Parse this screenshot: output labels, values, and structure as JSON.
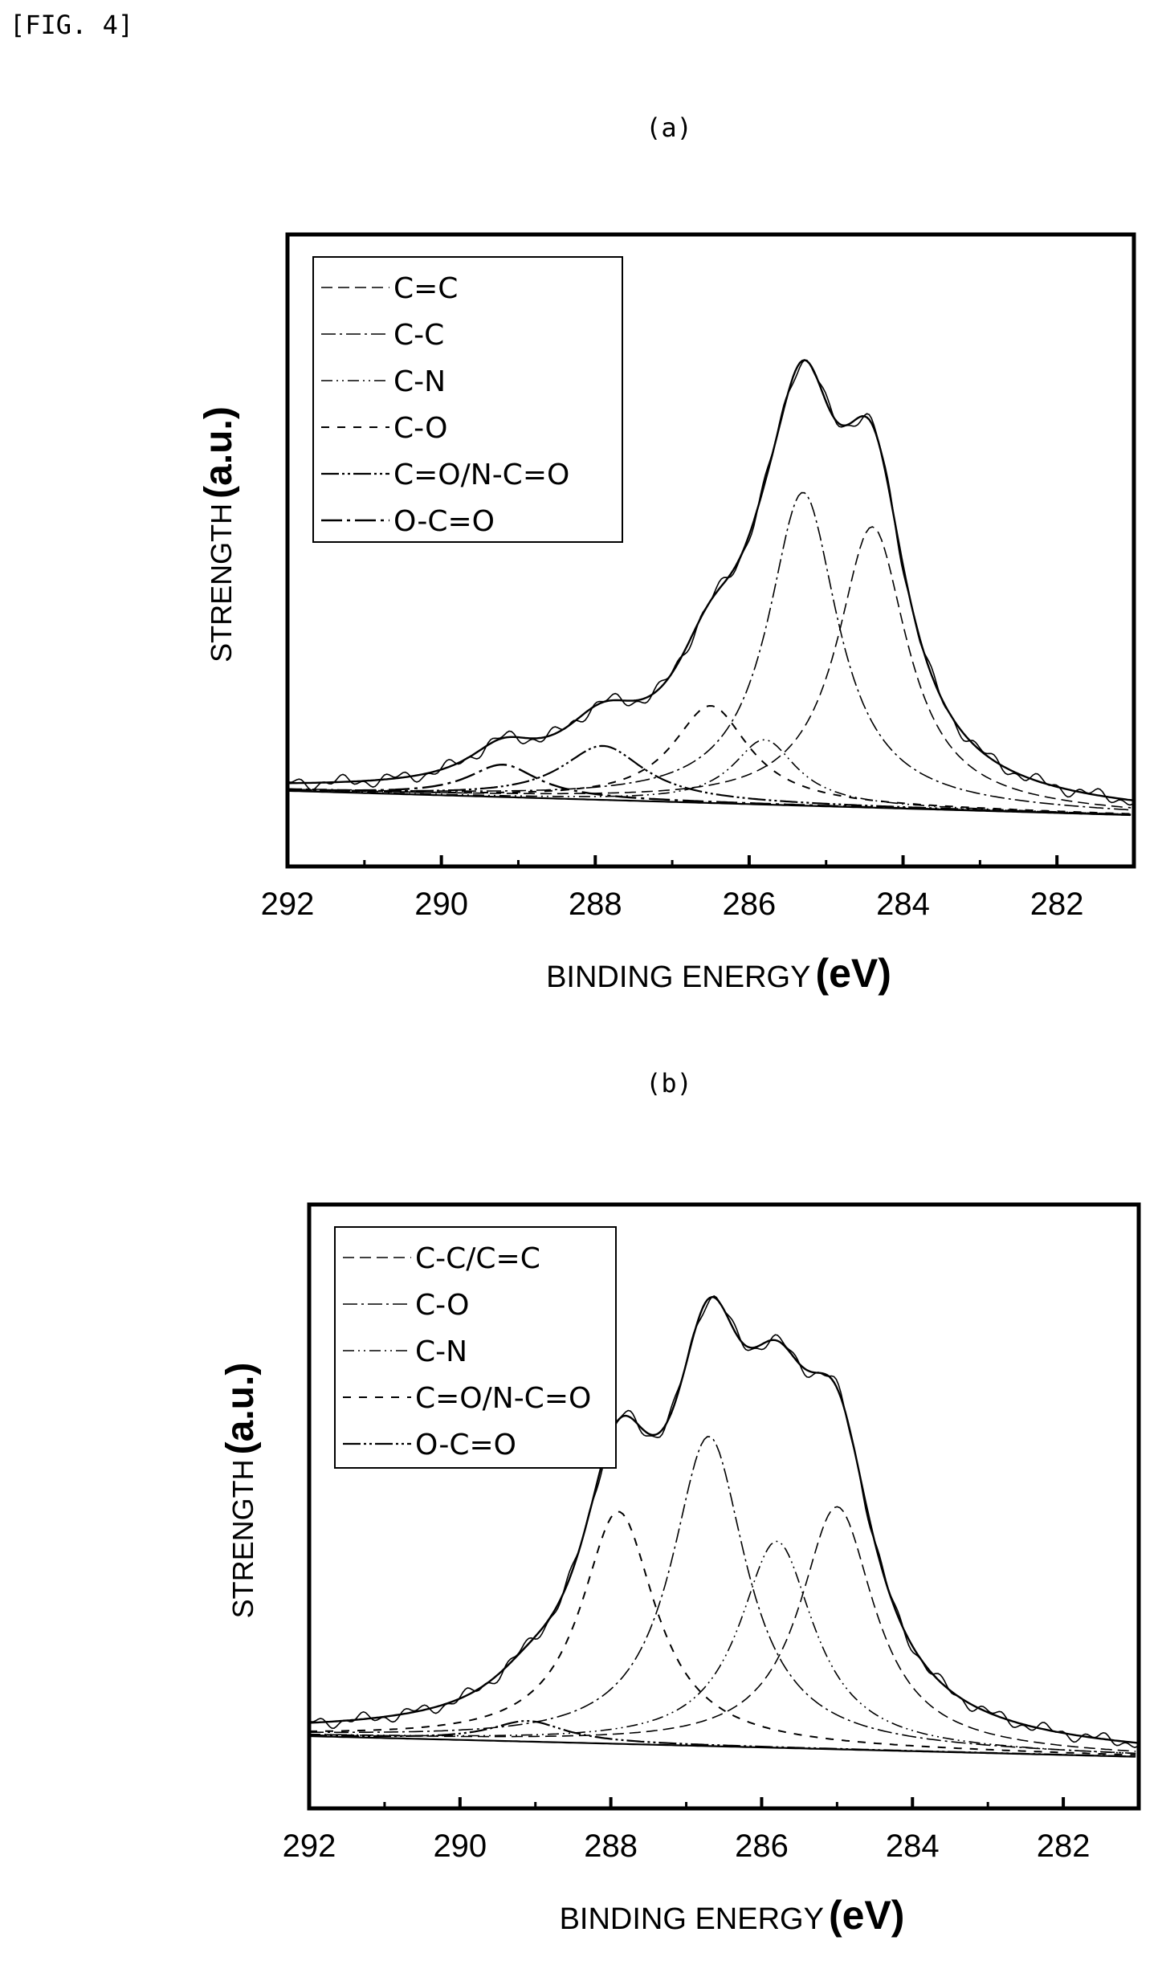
{
  "figure_label": "[FIG. 4]",
  "chart_data": [
    {
      "type": "line",
      "panel_label": "(a)",
      "xlabel_main": "BINDING ENERGY",
      "xlabel_unit": "(eV)",
      "ylabel_main": "STRENGTH",
      "ylabel_unit": "(a.u.)",
      "xlim": [
        292,
        281
      ],
      "ylim": [
        -0.12,
        1.05
      ],
      "x_ticks": [
        "292",
        "290",
        "288",
        "286",
        "284",
        "282"
      ],
      "grid": false,
      "legend_position": "top-left",
      "baseline": {
        "left": 0.02,
        "right": -0.025
      },
      "series": [
        {
          "name": "C=C",
          "peak": 284.4,
          "height": 0.52,
          "width": 0.55
        },
        {
          "name": "C-C",
          "peak": 285.3,
          "height": 0.58,
          "width": 0.55
        },
        {
          "name": "C-N",
          "peak": 285.8,
          "height": 0.12,
          "width": 0.5
        },
        {
          "name": "C-O",
          "peak": 286.5,
          "height": 0.18,
          "width": 0.6
        },
        {
          "name": "C=O/N-C=O",
          "peak": 287.9,
          "height": 0.1,
          "width": 0.65
        },
        {
          "name": "O-C=O",
          "peak": 289.2,
          "height": 0.06,
          "width": 0.55
        }
      ]
    },
    {
      "type": "line",
      "panel_label": "(b)",
      "xlabel_main": "BINDING ENERGY",
      "xlabel_unit": "(eV)",
      "ylabel_main": "STRENGTH",
      "ylabel_unit": "(a.u.)",
      "xlim": [
        292,
        281
      ],
      "ylim": [
        -0.12,
        1.05
      ],
      "x_ticks": [
        "292",
        "290",
        "288",
        "286",
        "284",
        "282"
      ],
      "grid": false,
      "legend_position": "top-left",
      "baseline": {
        "left": 0.02,
        "right": -0.02
      },
      "series": [
        {
          "name": "C-C/C=C",
          "peak": 285.0,
          "height": 0.47,
          "width": 0.6
        },
        {
          "name": "C-O",
          "peak": 286.7,
          "height": 0.6,
          "width": 0.6
        },
        {
          "name": "C-N",
          "peak": 285.8,
          "height": 0.4,
          "width": 0.6
        },
        {
          "name": "C=O/N-C=O",
          "peak": 287.9,
          "height": 0.45,
          "width": 0.6
        },
        {
          "name": "O-C=O",
          "peak": 289.1,
          "height": 0.04,
          "width": 0.6
        }
      ]
    }
  ]
}
